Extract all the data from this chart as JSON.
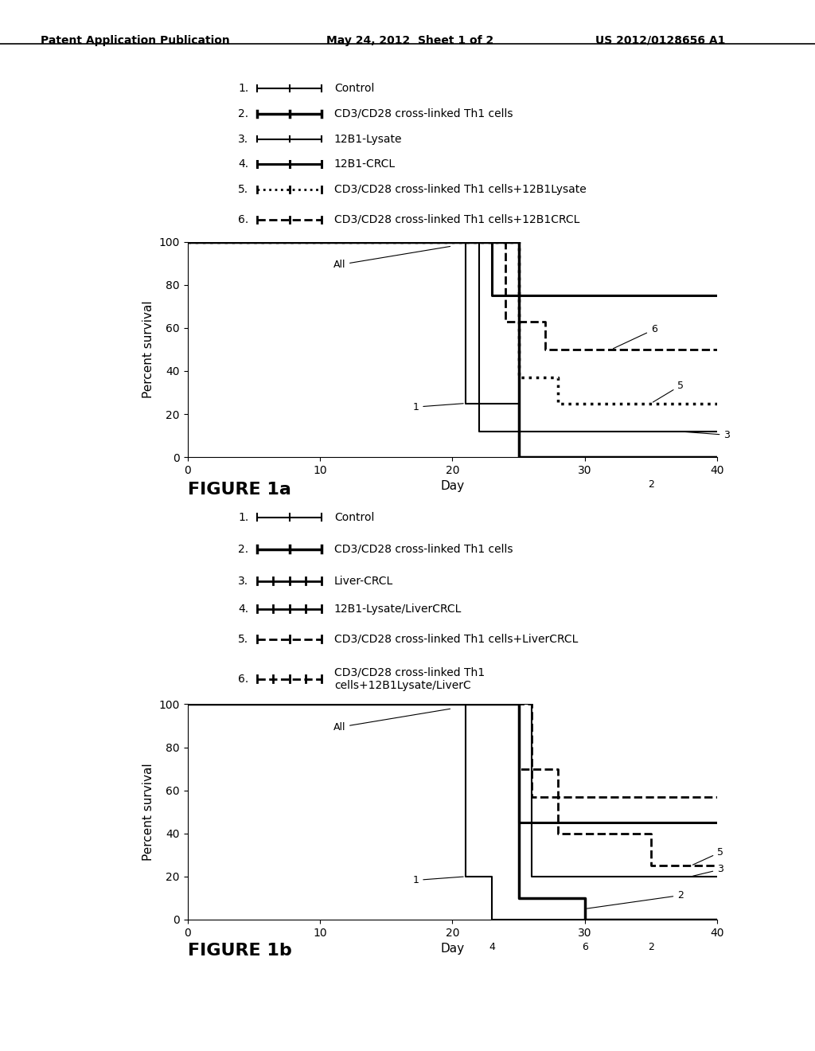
{
  "header_left": "Patent Application Publication",
  "header_center": "May 24, 2012  Sheet 1 of 2",
  "header_right": "US 2012/0128656 A1",
  "fig1a_title": "FIGURE 1a",
  "fig1b_title": "FIGURE 1b",
  "xlabel": "Day",
  "ylabel": "Percent survival",
  "xlim": [
    0,
    40
  ],
  "ylim": [
    0,
    100
  ],
  "xticks": [
    0,
    10,
    20,
    30,
    40
  ],
  "yticks": [
    0,
    20,
    40,
    60,
    80,
    100
  ],
  "fig1a_legend": [
    {
      "num": "1.",
      "label": "Control",
      "ls": "-",
      "lw": 1.5,
      "dotted": false,
      "has_tick": true
    },
    {
      "num": "2.",
      "label": "CD3/CD28 cross-linked Th1 cells",
      "ls": "-",
      "lw": 2.5,
      "dotted": false,
      "has_tick": true
    },
    {
      "num": "3.",
      "label": "12B1-Lysate",
      "ls": "-",
      "lw": 1.5,
      "dotted": false,
      "has_tick": true
    },
    {
      "num": "4.",
      "label": "12B1-CRCL",
      "ls": "-",
      "lw": 2.2,
      "dotted": false,
      "has_tick": true
    },
    {
      "num": "5.",
      "label": "CD3/CD28 cross-linked Th1 cells+12B1Lysate",
      "ls": ":",
      "lw": 2.0,
      "dotted": true,
      "has_tick": true
    },
    {
      "num": "6.",
      "label": "CD3/CD28 cross-linked Th1 cells+12B1CRCL",
      "ls": "--",
      "lw": 2.0,
      "dotted": false,
      "has_tick": true
    }
  ],
  "fig1b_legend": [
    {
      "num": "1.",
      "label": "Control",
      "ls": "-",
      "lw": 1.5,
      "dotted": false,
      "has_tick": true
    },
    {
      "num": "2.",
      "label": "CD3/CD28 cross-linked Th1 cells",
      "ls": "-",
      "lw": 2.5,
      "dotted": false,
      "has_tick": true
    },
    {
      "num": "3.",
      "label": "Liver-CRCL",
      "ls": "-",
      "lw": 2.0,
      "dotted": false,
      "has_tick": true,
      "multi_tick": true
    },
    {
      "num": "4.",
      "label": "12B1-Lysate/LiverCRCL",
      "ls": "-",
      "lw": 2.0,
      "dotted": false,
      "has_tick": true,
      "multi_tick": true
    },
    {
      "num": "5.",
      "label": "CD3/CD28 cross-linked Th1 cells+LiverCRCL",
      "ls": "--",
      "lw": 2.0,
      "dotted": false,
      "has_tick": true
    },
    {
      "num": "6.",
      "label": "CD3/CD28 cross-linked Th1\ncells+12B1Lysate/LiverC",
      "ls": "--",
      "lw": 2.0,
      "dotted": false,
      "has_tick": true,
      "multi_tick": true
    }
  ],
  "fig1a_c1x": [
    0,
    21,
    21,
    25,
    25,
    40
  ],
  "fig1a_c1y": [
    100,
    100,
    25,
    25,
    0,
    0
  ],
  "fig1a_c2x": [
    0,
    25,
    25,
    35,
    35,
    40
  ],
  "fig1a_c2y": [
    100,
    100,
    0,
    0,
    0,
    0
  ],
  "fig1a_c3x": [
    0,
    22,
    22,
    35,
    35,
    40
  ],
  "fig1a_c3y": [
    100,
    100,
    12,
    12,
    12,
    12
  ],
  "fig1a_c4x": [
    0,
    23,
    23,
    40
  ],
  "fig1a_c4y": [
    100,
    100,
    75,
    75
  ],
  "fig1a_c5x": [
    0,
    25,
    25,
    28,
    28,
    40
  ],
  "fig1a_c5y": [
    100,
    100,
    37,
    37,
    25,
    25
  ],
  "fig1a_c6x": [
    0,
    24,
    24,
    27,
    27,
    40
  ],
  "fig1a_c6y": [
    100,
    100,
    63,
    63,
    50,
    50
  ],
  "fig1b_c1x": [
    0,
    21,
    21,
    23,
    23,
    40
  ],
  "fig1b_c1y": [
    100,
    100,
    20,
    20,
    0,
    0
  ],
  "fig1b_c2x": [
    0,
    25,
    25,
    30,
    30,
    40
  ],
  "fig1b_c2y": [
    100,
    100,
    10,
    10,
    0,
    0
  ],
  "fig1b_c3x": [
    0,
    26,
    26,
    40
  ],
  "fig1b_c3y": [
    100,
    100,
    20,
    20
  ],
  "fig1b_c4x": [
    0,
    25,
    25,
    40
  ],
  "fig1b_c4y": [
    100,
    100,
    45,
    45
  ],
  "fig1b_c5x": [
    0,
    26,
    26,
    28,
    28,
    35,
    35,
    40
  ],
  "fig1b_c5y": [
    100,
    100,
    57,
    57,
    40,
    40,
    25,
    25
  ],
  "fig1b_c6x": [
    0,
    25,
    25,
    28,
    28,
    40
  ],
  "fig1b_c6y": [
    100,
    100,
    70,
    70,
    57,
    57
  ]
}
